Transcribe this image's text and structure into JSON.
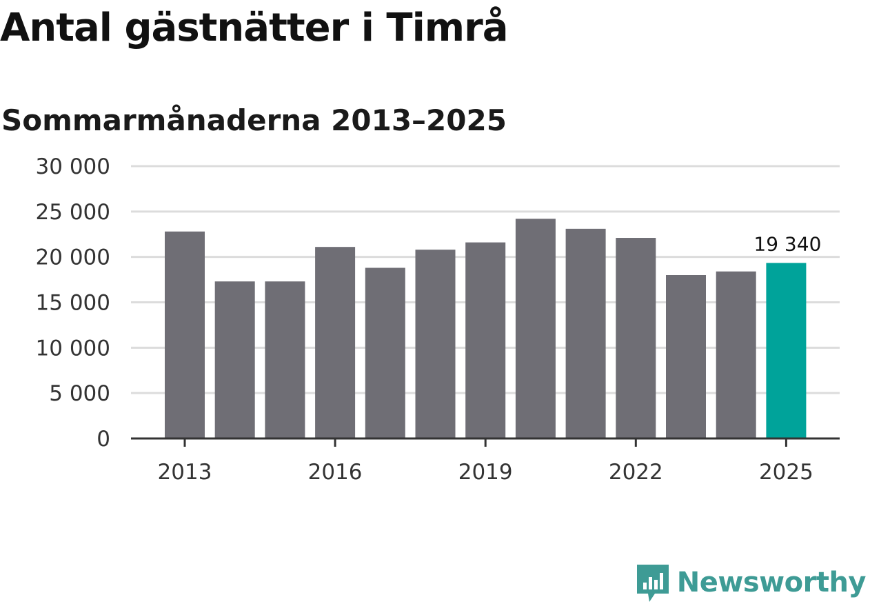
{
  "title": "Antal gästnätter i Timrå",
  "subtitle": "Sommarmånaderna 2013–2025",
  "brand": {
    "name": "Newsworthy",
    "color": "#3e9b95"
  },
  "colors": {
    "bar": "#6f6e75",
    "highlight": "#00a39a",
    "grid": "#dcdcdc",
    "axis": "#333333"
  },
  "chart_data": {
    "type": "bar",
    "categories": [
      "2013",
      "2014",
      "2015",
      "2016",
      "2017",
      "2018",
      "2019",
      "2020",
      "2021",
      "2022",
      "2023",
      "2024",
      "2025"
    ],
    "values": [
      22800,
      17300,
      17300,
      21100,
      18800,
      20800,
      21600,
      24200,
      23100,
      22100,
      18000,
      18400,
      19340
    ],
    "highlight_index": 12,
    "data_labels": [
      {
        "index": 12,
        "text": "19 340"
      }
    ],
    "y_ticks": [
      0,
      5000,
      10000,
      15000,
      20000,
      25000,
      30000
    ],
    "y_tick_labels": [
      "0",
      "5 000",
      "10 000",
      "15 000",
      "20 000",
      "25 000",
      "30 000"
    ],
    "x_tick_labels": [
      "2013",
      "2016",
      "2019",
      "2022",
      "2025"
    ],
    "x_tick_indices": [
      0,
      3,
      6,
      9,
      12
    ],
    "ylim": [
      0,
      30000
    ],
    "grid": true
  }
}
